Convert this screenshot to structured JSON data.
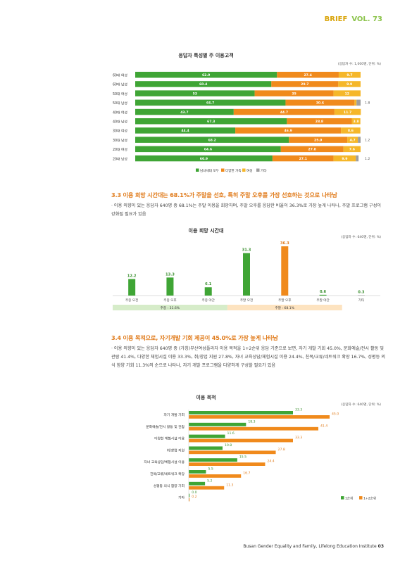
{
  "header": {
    "brand": "BRIEF",
    "volume": "VOL. 73"
  },
  "chart1": {
    "title": "응답자 특성별 주 이용고객",
    "note": "(응답자 수: 1,000명, 단위: %)",
    "chart_data": {
      "type": "bar",
      "orientation": "horizontal",
      "stacked": true,
      "categories": [
        "60대 여성",
        "60대 남성",
        "50대 여성",
        "50대 남성",
        "40대 여성",
        "40대 남성",
        "30대 여성",
        "30대 남성",
        "20대 여성",
        "20대 남성"
      ],
      "series": [
        {
          "name": "남녀세대 모두",
          "color": "#3fa535",
          "values": [
            62.9,
            60.4,
            53,
            66.7,
            43.7,
            67.3,
            44.4,
            68.2,
            64.6,
            60.9
          ],
          "labels": [
            "62.9",
            "60.4",
            "53",
            "66.7",
            "43.7",
            "67.3",
            "44.4",
            "68.2",
            "64.6",
            "60.9"
          ]
        },
        {
          "name": "다양한 가족",
          "color": "#f08a1c",
          "values": [
            27.4,
            29.7,
            35,
            30.6,
            44.7,
            28.8,
            46.9,
            25.9,
            27.8,
            27.1
          ],
          "labels": [
            "27.4",
            "29.7",
            "35",
            "30.6",
            "44.7",
            "28.8",
            "46.9",
            "25.9",
            "27.8",
            "27.1"
          ]
        },
        {
          "name": "여성",
          "color": "#f5b72a",
          "values": [
            9.7,
            9.9,
            12,
            0.9,
            11.7,
            3.8,
            8.6,
            4.7,
            7.6,
            9.9
          ],
          "labels": [
            "9.7",
            "9.9",
            "12",
            "0.9",
            "11.7",
            "3.8",
            "8.6",
            "4.7",
            "7.6",
            "9.9"
          ]
        },
        {
          "name": "기타",
          "color": "#9e9e9e",
          "values": [
            0,
            0,
            0,
            1.8,
            0,
            0,
            0,
            1.2,
            0,
            1.2
          ],
          "labels": [
            "",
            "",
            "",
            "1.8",
            "",
            "",
            "",
            "1.2",
            "",
            "1.2"
          ]
        }
      ]
    }
  },
  "section33": {
    "heading": "3.3 이용 희망 시간대는 68.1%가 주말을 선호, 특히 주말 오후를 가장 선호하는 것으로 나타남",
    "body": "· 이용 의향이 있는 응답자 640명 중 68.1%는 주말 이용을 희망하며, 주말 오후를 응답한 비율이 36.3%로 가장 높게 나타나, 주말 프로그램 구성이 강화될 필요가 있음"
  },
  "chart2": {
    "title": "이용 희망 시간대",
    "note": "(응답자 수: 640명, 단위: %)",
    "weekday_label": "주중 : 31.6%",
    "weekend_label": "주말 : 68.1%",
    "chart_data": {
      "type": "bar",
      "categories": [
        "주중 오전",
        "주중 오후",
        "주중 야간",
        "주말 오전",
        "주말 오후",
        "주말 야간",
        "기타"
      ],
      "values": [
        12.2,
        13.3,
        6.1,
        31.3,
        36.3,
        0.6,
        0.3
      ],
      "labels": [
        "12.2",
        "13.3",
        "6.1",
        "31.3",
        "36.3",
        "0.6",
        "0.3"
      ],
      "colors": [
        "#3fa535",
        "#3fa535",
        "#3fa535",
        "#3fa535",
        "#f08a1c",
        "#3fa535",
        "#9e9e9e"
      ]
    }
  },
  "section34": {
    "heading": "3.4 이용 목적으로, 자기개발 기회 제공이 45.0%로 가장 높게 나타남",
    "body": "· 이용 의향이 있는 응답자 640명 중 (가칭)부산여성플라자 이용 목적을 1+2순위 응답 기준으로 보면, 자기 개발 기회 45.0%, 문화예술/전시 활동 및 관람 41.4%, 다양한 체험시설 이용 33.3%, 취/창업 지원 27.8%, 자녀 교육상담/체험시설 이용 24.4%, 친목/교류/네트워크 확장 16.7%, 성평등 의식 함양 기회 11.3%의 순으로 나타나, 자기 개발 프로그램을 다양하게 구성할 필요가 있음"
  },
  "chart3": {
    "title": "이용 목적",
    "note": "(응답자 수: 640명, 단위: %)",
    "chart_data": {
      "type": "bar",
      "orientation": "horizontal",
      "categories": [
        "자기 개발 기회",
        "문화예술/전시 활동 및 관람",
        "다양한 체험시설 이용",
        "취/창업 지원",
        "자녀 교육상담/체험시설 이용",
        "친목/교류/네트워크 확장",
        "성평등 의식 함양 기회",
        "기타"
      ],
      "series": [
        {
          "name": "1순위",
          "color": "#3fa535",
          "values": [
            33.3,
            18.3,
            11.6,
            10.8,
            15.5,
            5.5,
            5.2,
            0.0
          ],
          "labels": [
            "33.3",
            "18.3",
            "11.6",
            "10.8",
            "15.5",
            "5.5",
            "5.2",
            "0.0"
          ]
        },
        {
          "name": "1+2순위",
          "color": "#f08a1c",
          "values": [
            45.0,
            41.4,
            33.3,
            27.8,
            24.4,
            16.7,
            11.3,
            0.2
          ],
          "labels": [
            "45.0",
            "41.4",
            "33.3",
            "27.8",
            "24.4",
            "16.7",
            "11.3",
            "0.2"
          ]
        }
      ]
    }
  },
  "footer": {
    "text": "Busan Gender Equality and Family, Lifelong Education Institute",
    "page": "03"
  }
}
